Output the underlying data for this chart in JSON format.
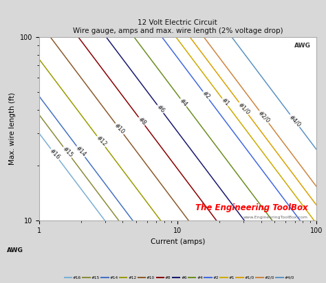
{
  "title": "12 Volt Electric Circuit",
  "subtitle": "Wire gauge, amps and max. wire length (2% voltage drop)",
  "xlabel": "Current (amps)",
  "ylabel": "Max. wire length (ft)",
  "xlim": [
    1,
    100
  ],
  "ylim": [
    10,
    100
  ],
  "watermark": "The Engineering ToolBox",
  "watermark_url": "www.EngineeringToolBox.com",
  "plot_bg": "#ffffff",
  "fig_bg": "#d8d8d8",
  "grid_color": "#e0e0e0",
  "voltage": 12,
  "voltage_drop_pct": 0.02,
  "awg_gauges": [
    "#16",
    "#15",
    "#14",
    "#12",
    "#10",
    "#8",
    "#6",
    "#4",
    "#2",
    "#1",
    "#1/0",
    "#2/0",
    "#4/0"
  ],
  "awg_resistance_per_1000ft": [
    4.016,
    3.184,
    2.525,
    1.588,
    0.9989,
    0.6282,
    0.3951,
    0.2485,
    0.1563,
    0.1239,
    0.09827,
    0.07793,
    0.04901
  ],
  "awg_colors": [
    "#7bafd4",
    "#8b8b3a",
    "#4472c4",
    "#9b9b00",
    "#8b5a2b",
    "#8b0000",
    "#191970",
    "#6b8e23",
    "#4169e1",
    "#ccaa00",
    "#daa000",
    "#cd853f",
    "#5b92c4"
  ],
  "label_x_positions": [
    1.3,
    1.6,
    2.0,
    2.8,
    3.8,
    5.5,
    7.5,
    11,
    16,
    22,
    30,
    42,
    70
  ],
  "label_color": "#222222",
  "label_fontsize": 6.0
}
